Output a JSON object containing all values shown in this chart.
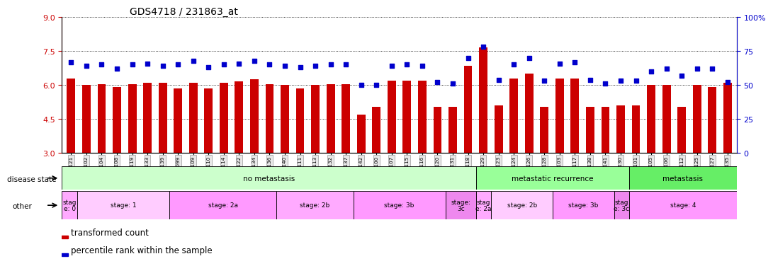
{
  "title": "GDS4718 / 231863_at",
  "samples": [
    "GSM549121",
    "GSM549102",
    "GSM549104",
    "GSM549108",
    "GSM549119",
    "GSM549133",
    "GSM549139",
    "GSM549099",
    "GSM549109",
    "GSM549110",
    "GSM549114",
    "GSM549122",
    "GSM549134",
    "GSM549136",
    "GSM549140",
    "GSM549111",
    "GSM549113",
    "GSM549132",
    "GSM549137",
    "GSM549142",
    "GSM549100",
    "GSM549107",
    "GSM549115",
    "GSM549116",
    "GSM549120",
    "GSM549131",
    "GSM549118",
    "GSM549129",
    "GSM549123",
    "GSM549124",
    "GSM549126",
    "GSM549128",
    "GSM549103",
    "GSM549117",
    "GSM549138",
    "GSM549141",
    "GSM549130",
    "GSM549101",
    "GSM549105",
    "GSM549106",
    "GSM549112",
    "GSM549125",
    "GSM549127",
    "GSM549135"
  ],
  "bar_values": [
    6.3,
    6.0,
    6.05,
    5.9,
    6.05,
    6.1,
    6.1,
    5.85,
    6.1,
    5.85,
    6.1,
    6.15,
    6.25,
    6.05,
    6.0,
    5.85,
    6.0,
    6.05,
    6.05,
    4.7,
    5.05,
    6.2,
    6.2,
    6.2,
    5.05,
    5.05,
    6.85,
    7.65,
    5.1,
    6.3,
    6.5,
    5.05,
    6.3,
    6.3,
    5.05,
    5.05,
    5.1,
    5.1,
    6.0,
    6.0,
    5.05,
    6.0,
    5.9,
    6.1
  ],
  "percentile_values": [
    67,
    64,
    65,
    62,
    65,
    66,
    64,
    65,
    68,
    63,
    65,
    66,
    68,
    65,
    64,
    63,
    64,
    65,
    65,
    50,
    50,
    64,
    65,
    64,
    52,
    51,
    70,
    78,
    54,
    65,
    70,
    53,
    66,
    67,
    54,
    51,
    53,
    53,
    60,
    62,
    57,
    62,
    62,
    52
  ],
  "ylim_left": [
    3,
    9
  ],
  "ylim_right": [
    0,
    100
  ],
  "yticks_left": [
    3,
    4.5,
    6,
    7.5,
    9
  ],
  "yticks_right": [
    0,
    25,
    50,
    75,
    100
  ],
  "ytick_right_labels": [
    "0",
    "25",
    "50",
    "75",
    "100%"
  ],
  "bar_color": "#cc0000",
  "dot_color": "#0000cc",
  "disease_state_groups": [
    {
      "label": "no metastasis",
      "start": 0,
      "end": 27,
      "color": "#ccffcc"
    },
    {
      "label": "metastatic recurrence",
      "start": 27,
      "end": 37,
      "color": "#99ff99"
    },
    {
      "label": "metastasis",
      "start": 37,
      "end": 44,
      "color": "#66ee66"
    }
  ],
  "stage_groups": [
    {
      "label": "stag\ne: 0",
      "start": 0,
      "end": 1,
      "color": "#ffaaff"
    },
    {
      "label": "stage: 1",
      "start": 1,
      "end": 7,
      "color": "#ffccff"
    },
    {
      "label": "stage: 2a",
      "start": 7,
      "end": 14,
      "color": "#ff99ff"
    },
    {
      "label": "stage: 2b",
      "start": 14,
      "end": 19,
      "color": "#ffaaff"
    },
    {
      "label": "stage: 3b",
      "start": 19,
      "end": 25,
      "color": "#ff99ff"
    },
    {
      "label": "stage:\n3c",
      "start": 25,
      "end": 27,
      "color": "#ee88ee"
    },
    {
      "label": "stag\ne: 2a",
      "start": 27,
      "end": 28,
      "color": "#ffaaff"
    },
    {
      "label": "stage: 2b",
      "start": 28,
      "end": 32,
      "color": "#ffccff"
    },
    {
      "label": "stage: 3b",
      "start": 32,
      "end": 36,
      "color": "#ff99ff"
    },
    {
      "label": "stag\ne: 3c",
      "start": 36,
      "end": 37,
      "color": "#ee88ee"
    },
    {
      "label": "stage: 4",
      "start": 37,
      "end": 44,
      "color": "#ff99ff"
    }
  ]
}
